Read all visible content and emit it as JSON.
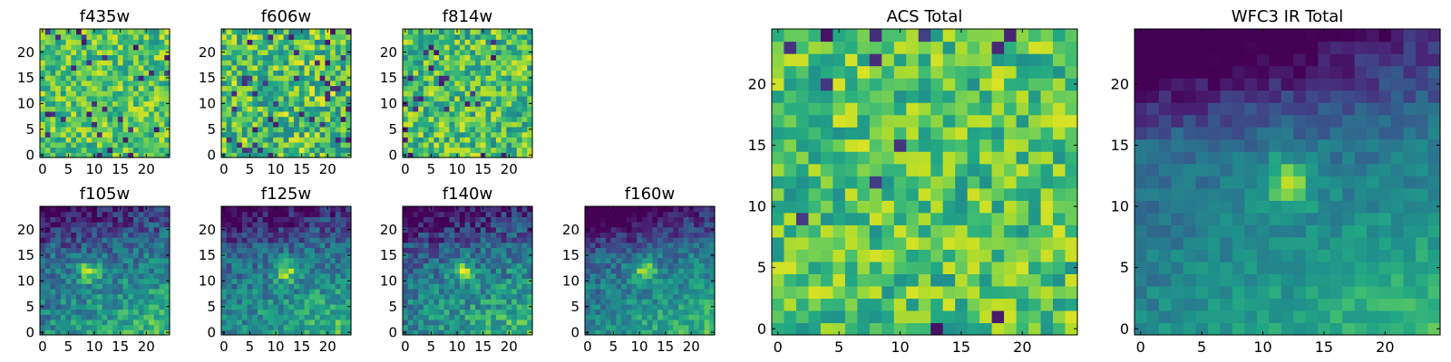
{
  "chart_data": [
    {
      "type": "heatmap",
      "title": "f435w",
      "xticks": [
        "0",
        "5",
        "10",
        "15",
        "20"
      ],
      "yticks": [
        "0",
        "5",
        "10",
        "15",
        "20"
      ],
      "colormap": "viridis",
      "grid": false,
      "grid_size": [
        25,
        25
      ]
    },
    {
      "type": "heatmap",
      "title": "f606w",
      "xticks": [
        "0",
        "5",
        "10",
        "15",
        "20"
      ],
      "yticks": [
        "0",
        "5",
        "10",
        "15",
        "20"
      ],
      "colormap": "viridis",
      "grid": false,
      "grid_size": [
        25,
        25
      ]
    },
    {
      "type": "heatmap",
      "title": "f814w",
      "xticks": [
        "0",
        "5",
        "10",
        "15",
        "20"
      ],
      "yticks": [
        "0",
        "5",
        "10",
        "15",
        "20"
      ],
      "colormap": "viridis",
      "grid": false,
      "grid_size": [
        25,
        25
      ]
    },
    {
      "type": "heatmap",
      "title": "f105w",
      "xticks": [
        "0",
        "5",
        "10",
        "15",
        "20"
      ],
      "yticks": [
        "0",
        "5",
        "10",
        "15",
        "20"
      ],
      "colormap": "viridis",
      "grid": false,
      "grid_size": [
        25,
        25
      ]
    },
    {
      "type": "heatmap",
      "title": "f125w",
      "xticks": [
        "0",
        "5",
        "10",
        "15",
        "20"
      ],
      "yticks": [
        "0",
        "5",
        "10",
        "15",
        "20"
      ],
      "colormap": "viridis",
      "grid": false,
      "grid_size": [
        25,
        25
      ]
    },
    {
      "type": "heatmap",
      "title": "f140w",
      "xticks": [
        "0",
        "5",
        "10",
        "15",
        "20"
      ],
      "yticks": [
        "0",
        "5",
        "10",
        "15",
        "20"
      ],
      "colormap": "viridis",
      "grid": false,
      "grid_size": [
        25,
        25
      ]
    },
    {
      "type": "heatmap",
      "title": "f160w",
      "xticks": [
        "0",
        "5",
        "10",
        "15",
        "20"
      ],
      "yticks": [
        "0",
        "5",
        "10",
        "15",
        "20"
      ],
      "colormap": "viridis",
      "grid": false,
      "grid_size": [
        25,
        25
      ]
    },
    {
      "type": "heatmap",
      "title": "ACS Total",
      "xticks": [
        "0",
        "5",
        "10",
        "15",
        "20"
      ],
      "yticks": [
        "0",
        "5",
        "10",
        "15",
        "20"
      ],
      "colormap": "viridis",
      "grid": false,
      "grid_size": [
        25,
        25
      ]
    },
    {
      "type": "heatmap",
      "title": "WFC3 IR Total",
      "xticks": [
        "0",
        "5",
        "10",
        "15",
        "20"
      ],
      "yticks": [
        "0",
        "5",
        "10",
        "15",
        "20"
      ],
      "colormap": "viridis",
      "grid": false,
      "grid_size": [
        25,
        25
      ]
    }
  ]
}
